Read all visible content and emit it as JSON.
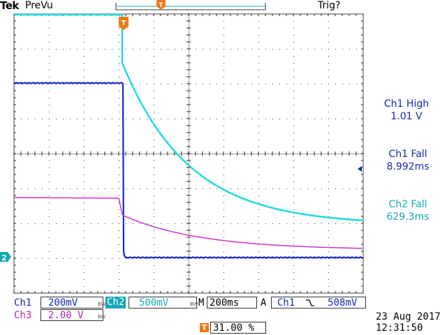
{
  "header": {
    "brand": "Tek",
    "mode": "PreVu",
    "trigger_status": "Trig?"
  },
  "measurements": [
    {
      "label": "Ch1 High",
      "value": "1.01 V",
      "color": "#1428b4"
    },
    {
      "label": "Ch1 Fall",
      "value": "8.992ms",
      "color": "#1428b4"
    },
    {
      "label": "Ch2 Fall",
      "value": "629.3ms",
      "color": "#14a8b8"
    }
  ],
  "channels": {
    "ch1": {
      "name": "Ch1",
      "scale": "200mV",
      "bw": "BW",
      "color": "#1428b4"
    },
    "ch2": {
      "name": "Ch2",
      "scale": "500mV",
      "bw": "BW",
      "color": "#14a8b8"
    },
    "ch3": {
      "name": "Ch3",
      "scale": "2.00 V",
      "bw": "BW",
      "color": "#b428b4"
    }
  },
  "timebase": {
    "label": "M",
    "value": "200ms"
  },
  "trigger": {
    "mode": "A",
    "source": "Ch1",
    "slope": "⫉",
    "level": "508mV",
    "marker": "T",
    "position": "31.00 %"
  },
  "markers": {
    "ch2_ground": "2",
    "trigger_top": "T",
    "trigger_level_arrow": "◀"
  },
  "datetime": {
    "date": "23 Aug 2017",
    "time": "12:31:50"
  }
}
